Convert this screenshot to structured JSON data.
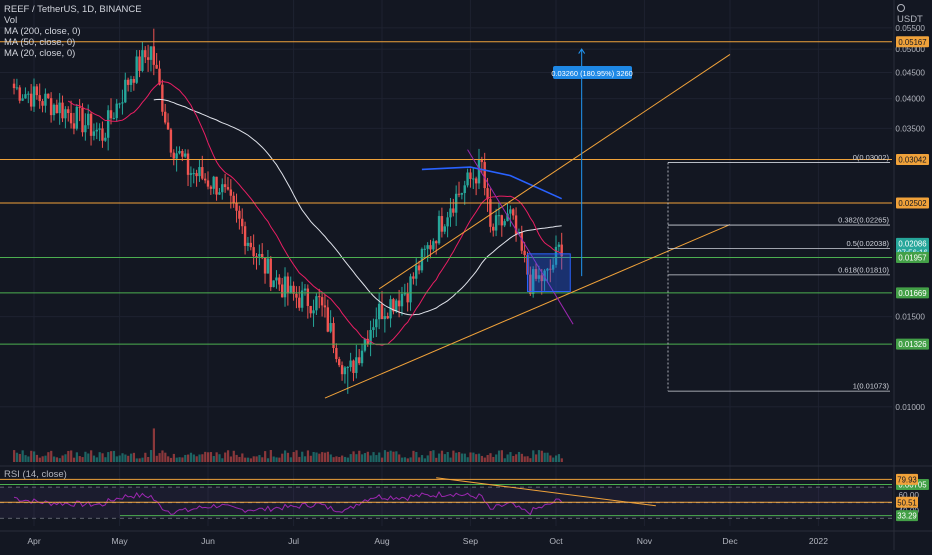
{
  "header": {
    "symbol_title": "REEF / TetherUS, 1D, BINANCE",
    "indicators": [
      "Vol",
      "MA (200, close, 0)",
      "MA (50, close, 0)",
      "MA (20, close, 0)"
    ],
    "currency": "USDT",
    "rsi_title": "RSI (14, close)"
  },
  "colors": {
    "background": "#131722",
    "up": "#26a69a",
    "down": "#ef5350",
    "ma200": "#2962ff",
    "ma50": "#e0e3eb",
    "ma20": "#e91e63",
    "level_line": "#f0a23a",
    "support_line": "#4caf50",
    "rsi_line": "#9c27b0"
  },
  "chart_data": {
    "type": "candlestick",
    "x_axis": {
      "ticks": [
        "Apr",
        "May",
        "Jun",
        "Jul",
        "Aug",
        "Sep",
        "Oct",
        "Nov",
        "Dec",
        "2022"
      ]
    },
    "price_axis": {
      "ticks": [
        "0.05500",
        "0.05000",
        "0.04500",
        "0.04000",
        "0.03500",
        "0.01500",
        "0.01000"
      ],
      "ylim": [
        0.0078,
        0.0575
      ]
    },
    "price_labels": [
      {
        "text": "0.05167",
        "value": 0.05167,
        "kind": "level"
      },
      {
        "text": "0.03042",
        "value": 0.03042,
        "kind": "level"
      },
      {
        "text": "0.02502",
        "value": 0.02502,
        "kind": "level"
      },
      {
        "text": "0.02086",
        "sub": "07:56:16",
        "value": 0.02086,
        "kind": "last"
      },
      {
        "text": "0.01957",
        "value": 0.01957,
        "kind": "support"
      },
      {
        "text": "0.01669",
        "value": 0.01669,
        "kind": "support"
      },
      {
        "text": "0.01326",
        "value": 0.01326,
        "kind": "support"
      },
      {
        "text": "0.00705",
        "value": 0.00705,
        "kind": "support"
      }
    ],
    "fib_levels": [
      {
        "label": "0(0.03002)",
        "ratio": 0,
        "price": 0.03002
      },
      {
        "label": "0.382(0.02265)",
        "ratio": 0.382,
        "price": 0.02265
      },
      {
        "label": "0.5(0.02038)",
        "ratio": 0.5,
        "price": 0.02038
      },
      {
        "label": "0.618(0.01810)",
        "ratio": 0.618,
        "price": 0.0181
      },
      {
        "label": "1(0.01073)",
        "ratio": 1,
        "price": 0.01073
      }
    ],
    "target_label": "0.03260 (180.95%) 3260",
    "rsi": {
      "ticks": [
        "60.00",
        "40.00"
      ],
      "labels": [
        {
          "text": "79.93",
          "value": 79.93,
          "kind": "level"
        },
        {
          "text": "50.51",
          "value": 50.51,
          "kind": "level"
        },
        {
          "text": "33.29",
          "value": 33.29,
          "kind": "support"
        }
      ],
      "ylim": [
        20,
        92
      ]
    },
    "ohlc_keypoints": [
      {
        "date": "2021-03-25",
        "close": 0.042
      },
      {
        "date": "2021-04-10",
        "close": 0.0385
      },
      {
        "date": "2021-04-25",
        "close": 0.034
      },
      {
        "date": "2021-05-05",
        "close": 0.0445
      },
      {
        "date": "2021-05-12",
        "close": 0.05
      },
      {
        "date": "2021-05-19",
        "close": 0.033
      },
      {
        "date": "2021-05-25",
        "close": 0.029
      },
      {
        "date": "2021-06-05",
        "close": 0.027
      },
      {
        "date": "2021-06-20",
        "close": 0.019
      },
      {
        "date": "2021-06-30",
        "close": 0.0165
      },
      {
        "date": "2021-07-10",
        "close": 0.016
      },
      {
        "date": "2021-07-20",
        "close": 0.0115
      },
      {
        "date": "2021-07-30",
        "close": 0.0152
      },
      {
        "date": "2021-08-10",
        "close": 0.017
      },
      {
        "date": "2021-08-25",
        "close": 0.025
      },
      {
        "date": "2021-09-05",
        "close": 0.0295
      },
      {
        "date": "2021-09-08",
        "close": 0.022
      },
      {
        "date": "2021-09-15",
        "close": 0.0235
      },
      {
        "date": "2021-09-22",
        "close": 0.0175
      },
      {
        "date": "2021-09-28",
        "close": 0.018
      },
      {
        "date": "2021-10-03",
        "close": 0.0208
      }
    ]
  }
}
